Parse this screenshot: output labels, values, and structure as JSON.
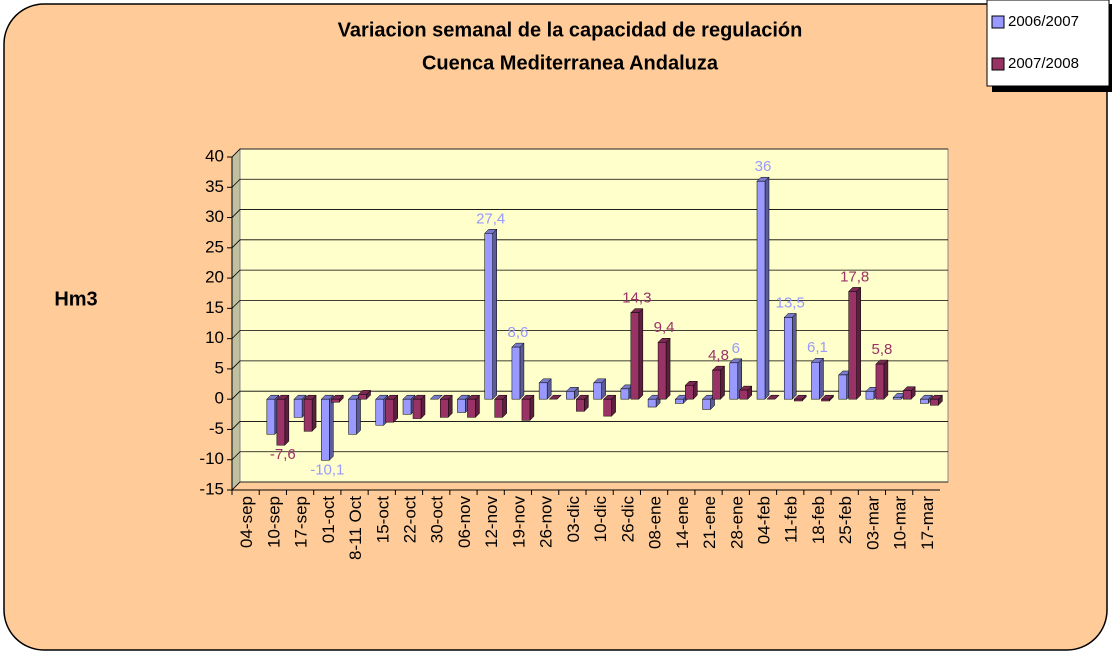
{
  "chart_data": {
    "type": "bar",
    "title": "Variacion semanal de la capacidad de regulación",
    "subtitle": "Cuenca Mediterranea Andaluza",
    "y_label": "Hm3",
    "categories": [
      "04-sep",
      "10-sep",
      "17-sep",
      "01-oct",
      "8-11 Oct",
      "15-oct",
      "22-oct",
      "30-oct",
      "06-nov",
      "12-nov",
      "19-nov",
      "26-nov",
      "03-dic",
      "10-dic",
      "26-dic",
      "08-ene",
      "14-ene",
      "21-ene",
      "28-ene",
      "04-feb",
      "11-feb",
      "18-feb",
      "25-feb",
      "03-mar",
      "10-mar",
      "17-mar"
    ],
    "series": [
      {
        "name": "2006/2007",
        "color": "#9999ff",
        "values": [
          null,
          -5.8,
          -3,
          -10.1,
          -5.8,
          -4.3,
          -2.5,
          0,
          -2.2,
          27.4,
          8.6,
          2.7,
          1.3,
          2.7,
          1.7,
          -1.3,
          -0.7,
          -1.7,
          6,
          36,
          13.5,
          6.1,
          4,
          1.3,
          0.3,
          -0.7
        ],
        "value_labels": [
          null,
          null,
          null,
          "-10,1",
          null,
          null,
          null,
          null,
          null,
          "27,4",
          "8,6",
          null,
          null,
          null,
          null,
          null,
          null,
          null,
          "6",
          "36",
          "13,5",
          "6,1",
          null,
          null,
          null,
          null
        ]
      },
      {
        "name": "2007/2008",
        "color": "#993366",
        "values": [
          null,
          -7.6,
          -5.3,
          -0.5,
          0.8,
          -3.8,
          -3.2,
          -3,
          -3,
          -3,
          -3.5,
          0,
          -2,
          -2.8,
          14.3,
          9.4,
          2.3,
          4.8,
          1.5,
          0,
          -0.3,
          -0.3,
          17.8,
          5.8,
          1.4,
          -1
        ],
        "value_labels": [
          null,
          "-7,6",
          null,
          null,
          null,
          null,
          null,
          null,
          null,
          null,
          null,
          null,
          null,
          null,
          "14,3",
          "9,4",
          null,
          "4,8",
          null,
          null,
          null,
          null,
          "17,8",
          "5,8",
          null,
          null
        ]
      }
    ],
    "ylim": [
      -15,
      40
    ],
    "yticks": [
      -15,
      -10,
      -5,
      0,
      5,
      10,
      15,
      20,
      25,
      30,
      35,
      40
    ],
    "grid": true,
    "legend": "top-right",
    "background": "#ffffcc"
  }
}
